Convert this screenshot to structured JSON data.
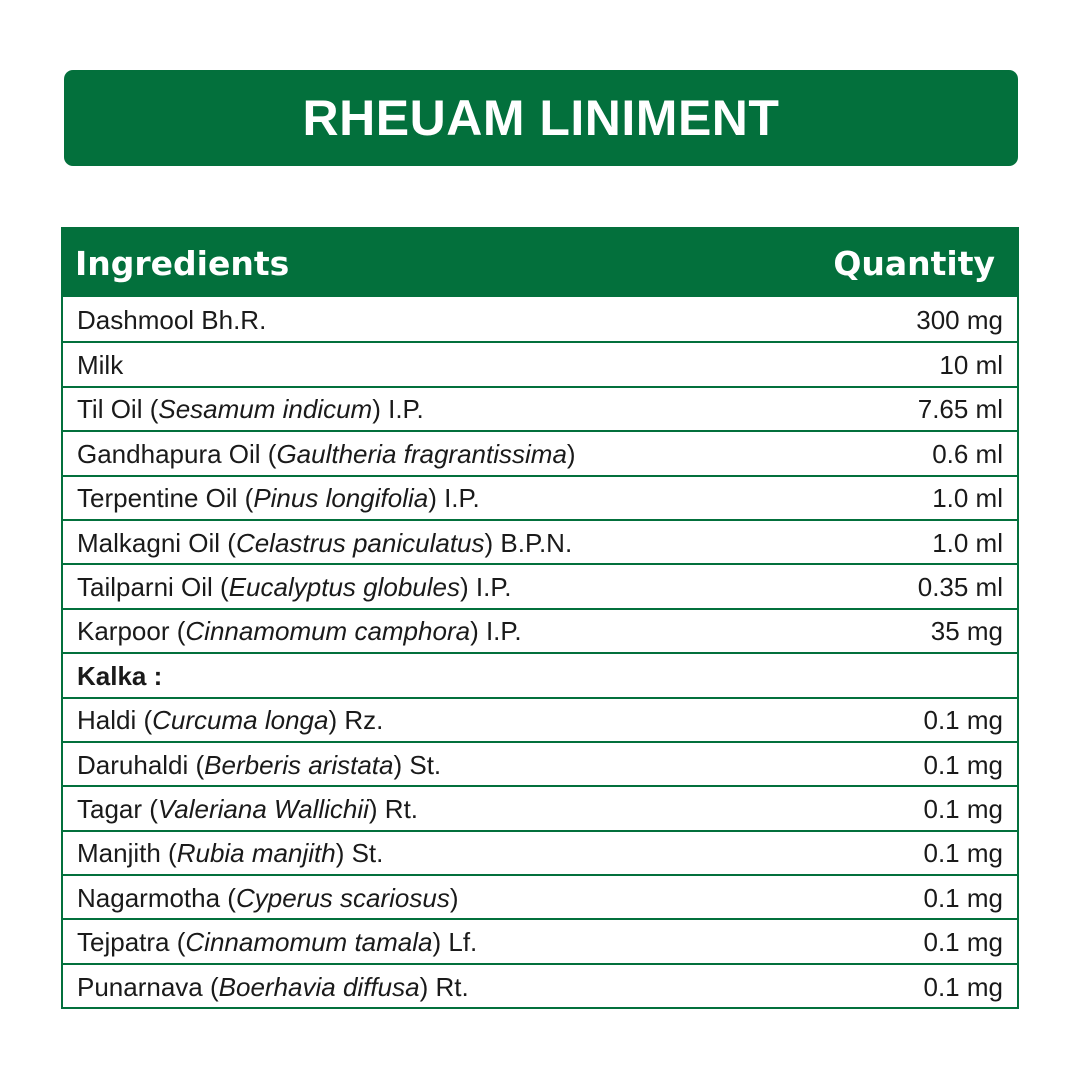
{
  "title": "RHEUAM LINIMENT",
  "table": {
    "headers": {
      "ingredients": "Ingredients",
      "quantity": "Quantity"
    },
    "rows": [
      {
        "type": "item",
        "pre": "Dashmool Bh.R.",
        "latin": "",
        "post": "",
        "qty": "300 mg"
      },
      {
        "type": "item",
        "pre": "Milk",
        "latin": "",
        "post": "",
        "qty": "10 ml"
      },
      {
        "type": "item",
        "pre": "Til Oil (",
        "latin": "Sesamum indicum",
        "post": ") I.P.",
        "qty": "7.65 ml"
      },
      {
        "type": "item",
        "pre": "Gandhapura Oil (",
        "latin": "Gaultheria fragrantissima",
        "post": ")",
        "qty": "0.6 ml"
      },
      {
        "type": "item",
        "pre": "Terpentine Oil (",
        "latin": "Pinus longifolia",
        "post": ") I.P.",
        "qty": "1.0 ml"
      },
      {
        "type": "item",
        "pre": "Malkagni Oil (",
        "latin": "Celastrus paniculatus",
        "post": ") B.P.N.",
        "qty": "1.0 ml"
      },
      {
        "type": "item",
        "pre": "Tailparni Oil (",
        "latin": "Eucalyptus globules",
        "post": ") I.P.",
        "qty": "0.35 ml"
      },
      {
        "type": "item",
        "pre": "Karpoor (",
        "latin": "Cinnamomum camphora",
        "post": ") I.P.",
        "qty": "35 mg"
      },
      {
        "type": "section",
        "label": "Kalka :"
      },
      {
        "type": "item",
        "pre": "Haldi (",
        "latin": "Curcuma longa",
        "post": ") Rz.",
        "qty": "0.1 mg"
      },
      {
        "type": "item",
        "pre": "Daruhaldi (",
        "latin": "Berberis aristata",
        "post": ") St.",
        "qty": "0.1 mg"
      },
      {
        "type": "item",
        "pre": "Tagar (",
        "latin": "Valeriana Wallichii",
        "post": ") Rt.",
        "qty": "0.1 mg"
      },
      {
        "type": "item",
        "pre": "Manjith (",
        "latin": "Rubia manjith",
        "post": ") St.",
        "qty": "0.1 mg"
      },
      {
        "type": "item",
        "pre": "Nagarmotha (",
        "latin": "Cyperus scariosus",
        "post": ")",
        "qty": "0.1 mg"
      },
      {
        "type": "item",
        "pre": "Tejpatra (",
        "latin": "Cinnamomum tamala",
        "post": ") Lf.",
        "qty": "0.1 mg"
      },
      {
        "type": "item",
        "pre": "Punarnava (",
        "latin": "Boerhavia diffusa",
        "post": ") Rt.",
        "qty": "0.1 mg"
      }
    ]
  },
  "colors": {
    "brand_green": "#03703c",
    "text": "#1a1a1a"
  }
}
